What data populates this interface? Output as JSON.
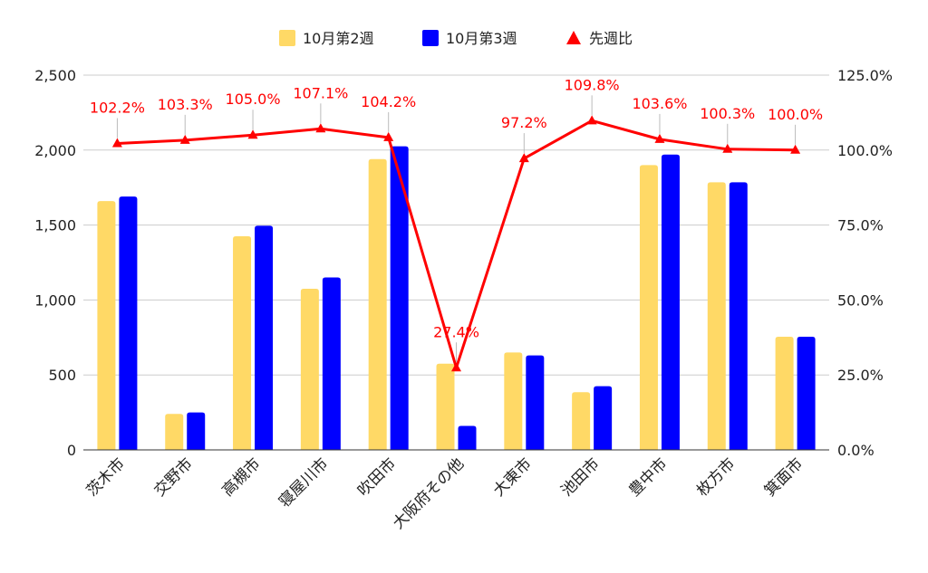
{
  "chart_data": {
    "type": "bar",
    "categories": [
      "茨木市",
      "交野市",
      "高槻市",
      "寝屋川市",
      "吹田市",
      "大阪府その他",
      "大東市",
      "池田市",
      "豊中市",
      "枚方市",
      "箕面市"
    ],
    "series": [
      {
        "name": "10月第2週",
        "kind": "bar",
        "axis": "left",
        "color": "#FFD966",
        "values": [
          1660,
          240,
          1425,
          1075,
          1940,
          575,
          650,
          385,
          1900,
          1785,
          755
        ]
      },
      {
        "name": "10月第3週",
        "kind": "bar",
        "axis": "left",
        "color": "#0000FF",
        "values": [
          1690,
          250,
          1495,
          1150,
          2025,
          160,
          630,
          425,
          1970,
          1785,
          755
        ]
      },
      {
        "name": "先週比",
        "kind": "line",
        "axis": "right",
        "color": "#FF0000",
        "marker": "triangle",
        "values": [
          102.2,
          103.3,
          105.0,
          107.1,
          104.2,
          27.4,
          97.2,
          109.8,
          103.6,
          100.3,
          100.0
        ],
        "labels": [
          "102.2%",
          "103.3%",
          "105.0%",
          "107.1%",
          "104.2%",
          "27.4%",
          "97.2%",
          "109.8%",
          "103.6%",
          "100.3%",
          "100.0%"
        ]
      }
    ],
    "ylim": [
      0,
      2500
    ],
    "y_ticks": [
      "0",
      "500",
      "1,000",
      "1,500",
      "2,000",
      "2,500"
    ],
    "y2lim": [
      0,
      125
    ],
    "y2_ticks": [
      "0.0%",
      "25.0%",
      "50.0%",
      "75.0%",
      "100.0%",
      "125.0%"
    ],
    "legend_position": "top-center",
    "grid": true
  }
}
